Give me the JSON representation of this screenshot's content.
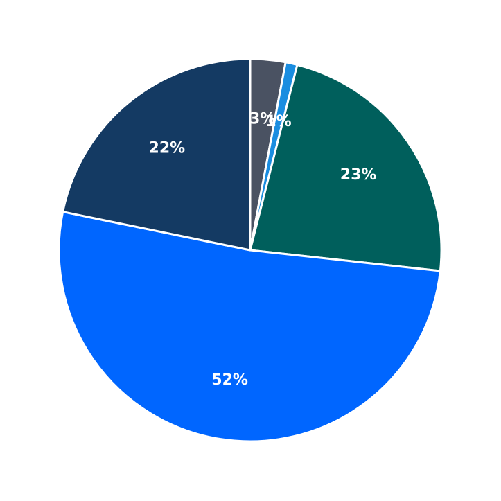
{
  "chart_data": {
    "type": "pie",
    "start_angle_deg": 90,
    "direction": "clockwise",
    "slices": [
      {
        "label": "3%",
        "value": 3,
        "color": "#4a5262"
      },
      {
        "label": "1%",
        "value": 1,
        "color": "#1a8de0"
      },
      {
        "label": "23%",
        "value": 23,
        "color": "#005f5c"
      },
      {
        "label": "52%",
        "value": 52,
        "color": "#0066ff"
      },
      {
        "label": "22%",
        "value": 22,
        "color": "#143a63"
      }
    ],
    "legend": "none",
    "grid": false
  }
}
